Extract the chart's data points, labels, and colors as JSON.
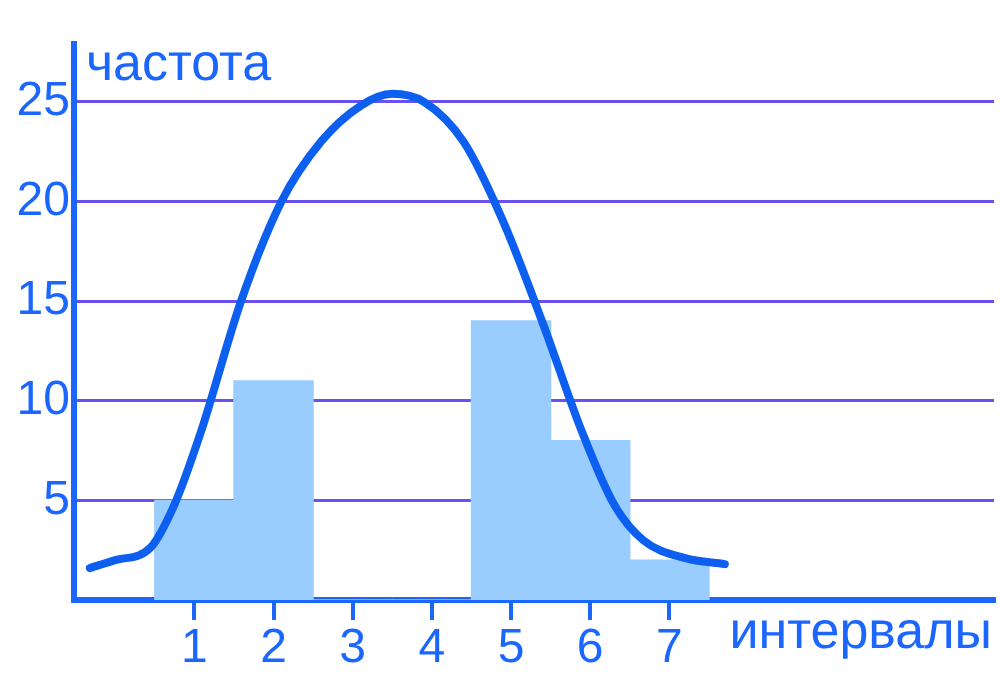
{
  "chart_data": {
    "type": "histogram",
    "xlabel": "интервалы",
    "ylabel": "частота",
    "bins": [
      0.5,
      1.5,
      2.5,
      3.5,
      4.5,
      5.5,
      6.5,
      7.5
    ],
    "xlim": [
      -0.52,
      11.1
    ],
    "xticks": [
      1,
      2,
      3,
      4,
      5,
      6,
      7
    ],
    "ylim": [
      0,
      27.9
    ],
    "yticks": [
      5,
      10,
      15,
      20,
      25
    ],
    "grid": "y",
    "series": [
      {
        "color": "#99ccff",
        "values": [
          5,
          11,
          0,
          0,
          14,
          8,
          2
        ]
      },
      {
        "type": "line",
        "color": "#0d5ff0",
        "x": [
          -0.32,
          0,
          0.44,
          0.75,
          1.08,
          1.59,
          2.1,
          2.6,
          3.1,
          3.5,
          3.9,
          4.4,
          4.9,
          5.4,
          5.9,
          6.3,
          6.67,
          7.2,
          7.7
        ],
        "values": [
          1.6,
          2,
          2.6,
          4.8,
          8.4,
          15,
          20,
          23,
          24.8,
          25.4,
          25,
          23,
          19,
          13.9,
          8.4,
          4.8,
          3,
          2.1,
          1.8
        ]
      }
    ]
  }
}
